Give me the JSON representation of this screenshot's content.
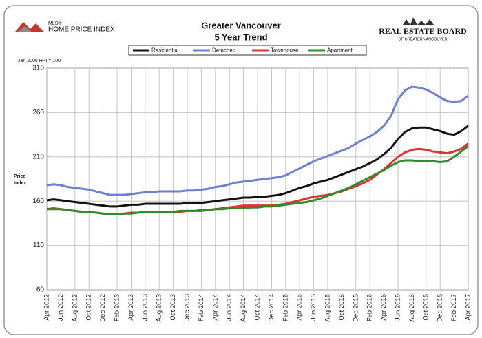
{
  "logo_left": {
    "mark": "MLS®",
    "name": "HOME PRICE INDEX"
  },
  "logo_right": {
    "name": "REAL ESTATE BOARD",
    "sub": "OF GREATER VANCOUVER"
  },
  "chart_data": {
    "type": "line",
    "title": "Greater Vancouver",
    "subtitle": "5 Year Trend",
    "note": "Jan 2005 HPI = 100",
    "y_label": [
      "Price",
      "Index"
    ],
    "categories": [
      "Apr 2012",
      null,
      "Jun 2012",
      null,
      "Aug 2012",
      null,
      "Oct 2012",
      null,
      "Dec 2012",
      null,
      "Feb 2013",
      null,
      "Apr 2013",
      null,
      "Jun 2013",
      null,
      "Aug 2013",
      null,
      "Oct 2013",
      null,
      "Dec 2013",
      null,
      "Feb 2014",
      null,
      "Apr 2014",
      null,
      "Jun 2014",
      null,
      "Aug 2014",
      null,
      "Oct 2014",
      null,
      "Dec 2014",
      null,
      "Feb 2015",
      null,
      "Apr 2015",
      null,
      "Jun 2015",
      null,
      "Aug 2015",
      null,
      "Oct 2015",
      null,
      "Dec 2015",
      null,
      "Feb 2016",
      null,
      "Apr 2016",
      null,
      "Jun 2016",
      null,
      "Aug 2016",
      null,
      "Oct 2016",
      null,
      "Dec 2016",
      null,
      "Feb 2017",
      null,
      "Apr 2017"
    ],
    "ylim": [
      60,
      310
    ],
    "yticks": [
      60,
      110,
      160,
      210,
      260,
      310
    ],
    "grid": true,
    "series": [
      {
        "name": "Residential",
        "color": "#111111",
        "values": [
          161,
          162,
          161,
          160,
          159,
          158,
          157,
          156,
          155,
          154,
          154,
          155,
          156,
          156,
          157,
          157,
          157,
          157,
          157,
          157,
          158,
          158,
          158,
          159,
          160,
          161,
          162,
          163,
          164,
          164,
          165,
          165,
          166,
          167,
          169,
          172,
          175,
          177,
          180,
          182,
          184,
          187,
          190,
          193,
          196,
          199,
          203,
          207,
          213,
          220,
          230,
          238,
          242,
          243,
          243,
          241,
          239,
          236,
          235,
          239,
          245
        ]
      },
      {
        "name": "Detached",
        "color": "#6f7fd0",
        "values": [
          178,
          179,
          178,
          176,
          175,
          174,
          173,
          171,
          169,
          167,
          167,
          167,
          168,
          169,
          170,
          170,
          171,
          171,
          171,
          171,
          172,
          172,
          173,
          174,
          176,
          177,
          179,
          181,
          182,
          183,
          184,
          185,
          186,
          187,
          189,
          193,
          197,
          201,
          205,
          208,
          211,
          214,
          217,
          220,
          225,
          229,
          233,
          238,
          245,
          256,
          275,
          285,
          289,
          288,
          286,
          282,
          277,
          273,
          272,
          273,
          279
        ]
      },
      {
        "name": "Townhouse",
        "color": "#e03030",
        "values": [
          151,
          152,
          151,
          150,
          149,
          148,
          148,
          147,
          146,
          145,
          145,
          146,
          147,
          147,
          148,
          148,
          148,
          148,
          148,
          148,
          149,
          149,
          149,
          150,
          151,
          152,
          153,
          154,
          155,
          155,
          155,
          155,
          155,
          156,
          157,
          159,
          161,
          163,
          165,
          166,
          167,
          169,
          171,
          174,
          177,
          180,
          184,
          190,
          196,
          203,
          210,
          215,
          218,
          219,
          218,
          216,
          215,
          214,
          216,
          219,
          225
        ]
      },
      {
        "name": "Apartment",
        "color": "#2e8b2e",
        "values": [
          151,
          151,
          151,
          150,
          149,
          148,
          148,
          147,
          146,
          145,
          145,
          146,
          146,
          147,
          148,
          148,
          148,
          148,
          148,
          149,
          149,
          149,
          150,
          150,
          151,
          151,
          152,
          152,
          152,
          153,
          153,
          154,
          154,
          155,
          156,
          157,
          158,
          159,
          161,
          163,
          166,
          169,
          172,
          175,
          179,
          183,
          187,
          191,
          195,
          200,
          204,
          206,
          206,
          205,
          205,
          205,
          204,
          205,
          210,
          216,
          222
        ]
      }
    ]
  }
}
